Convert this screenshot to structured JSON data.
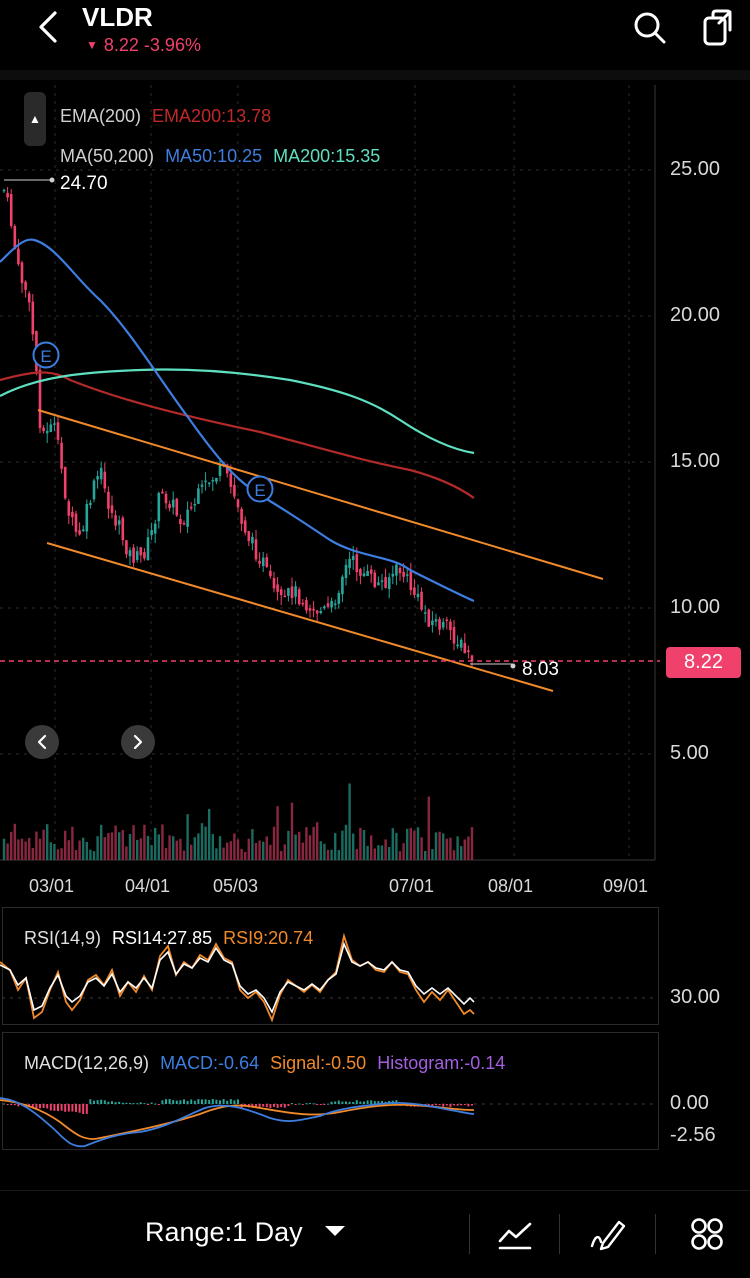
{
  "header": {
    "ticker": "VLDR",
    "quote": "8.22 -3.96%",
    "back_icon": "chevron-left-icon",
    "search_icon": "search-icon",
    "share_icon": "share-icon"
  },
  "legend": {
    "ema_label": "EMA(200)",
    "ema_value": "EMA200:13.78",
    "ma_label": "MA(50,200)",
    "ma50_value": "MA50:10.25",
    "ma200_value": "MA200:15.35"
  },
  "chart_marks": {
    "high_label": "24.70",
    "low_label": "8.03",
    "current_price": "8.22",
    "earnings_marker": "E"
  },
  "colors": {
    "up": "#26a69a",
    "down": "#f0416c",
    "ema200": "#b22a2a",
    "ma50": "#3d7ee0",
    "ma200": "#5ee0c0",
    "channel": "#f08a2a",
    "rsi9": "#f08a2a",
    "macd_signal": "#f08a2a",
    "histogram": "#a45ee0"
  },
  "chart_data": {
    "type": "line",
    "title": "",
    "y_ticks": [
      "25.00",
      "20.00",
      "15.00",
      "10.00",
      "5.00"
    ],
    "x_ticks": [
      "03/01",
      "04/01",
      "05/03",
      "07/01",
      "08/01",
      "09/01"
    ],
    "ylim": [
      2.5,
      28
    ],
    "series": [
      {
        "name": "MA50",
        "x": [
          "02/18",
          "03/01",
          "03/15",
          "04/01",
          "04/15",
          "05/03",
          "05/17",
          "06/01",
          "06/15",
          "07/01",
          "07/15",
          "07/22"
        ],
        "values": [
          21.0,
          22.6,
          20.3,
          16.8,
          14.3,
          13.2,
          12.4,
          11.9,
          11.4,
          11.0,
          10.5,
          10.25
        ]
      },
      {
        "name": "MA200",
        "x": [
          "02/18",
          "03/01",
          "03/15",
          "04/01",
          "04/15",
          "05/03",
          "05/17",
          "06/01",
          "06/15",
          "07/01",
          "07/15",
          "07/22"
        ],
        "values": [
          16.9,
          17.8,
          18.0,
          18.1,
          18.1,
          18.0,
          17.8,
          17.6,
          17.2,
          16.6,
          15.7,
          15.35
        ]
      },
      {
        "name": "EMA200",
        "x": [
          "02/18",
          "03/01",
          "03/15",
          "04/01",
          "04/15",
          "05/03",
          "05/17",
          "06/01",
          "06/15",
          "07/01",
          "07/15",
          "07/22"
        ],
        "values": [
          17.7,
          18.0,
          17.6,
          16.9,
          16.3,
          15.8,
          15.4,
          15.0,
          14.7,
          14.4,
          14.0,
          13.78
        ]
      }
    ]
  },
  "rsi": {
    "label": "RSI(14,9)",
    "rsi14": "RSI14:27.85",
    "rsi9": "RSI9:20.74",
    "level_label": "30.00"
  },
  "macd": {
    "label": "MACD(12,26,9)",
    "macd_value": "MACD:-0.64",
    "signal_value": "Signal:-0.50",
    "histogram_value": "Histogram:-0.14",
    "zero_label": "0.00",
    "min_label": "-2.56"
  },
  "footer": {
    "range_label": "Range:1 Day"
  }
}
